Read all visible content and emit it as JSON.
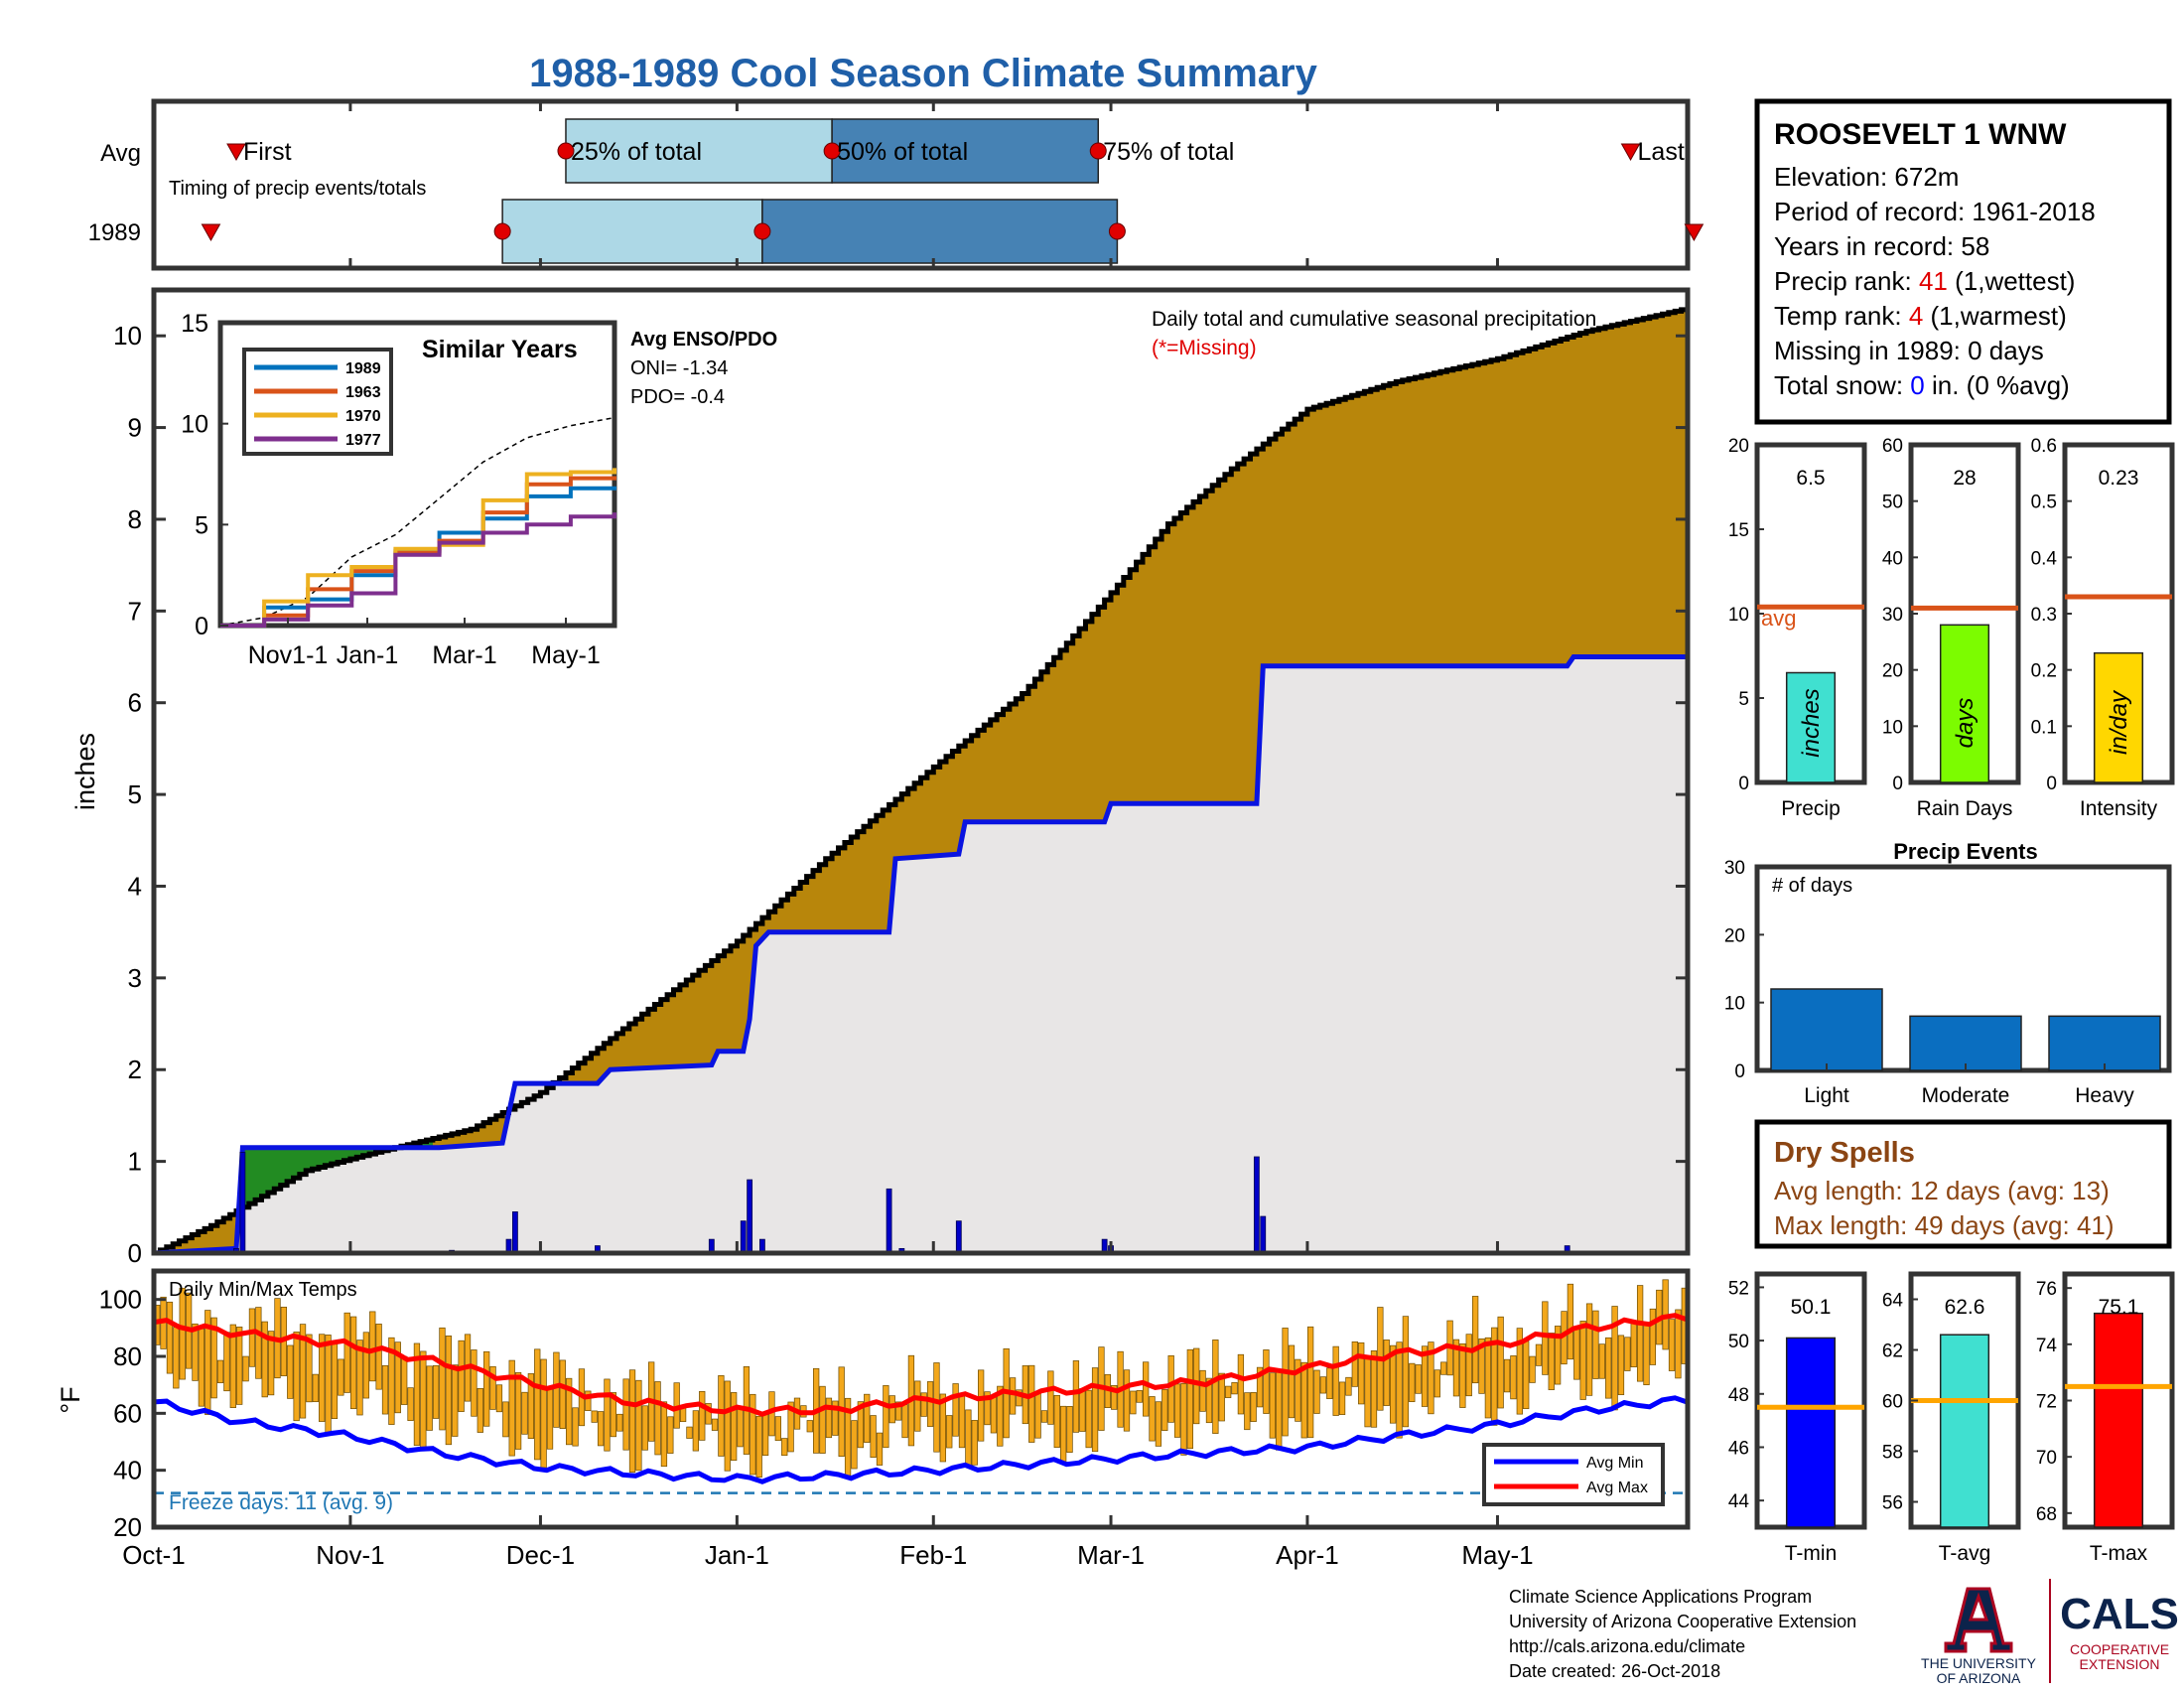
{
  "title": "1988-1989 Cool Season Climate Summary",
  "colors": {
    "title": "#1f5fa8",
    "frame": "#333333",
    "precip_fill": "#b8860b",
    "avg_fill": "#e8e6e6",
    "avg_line": "#0a14e0",
    "excess_fill": "#228b22",
    "timing_light": "#add8e6",
    "timing_dark": "#4682b4",
    "marker": "#e00000",
    "temp_bar": "#f2a71b",
    "avg_max_line": "#ff0000",
    "avg_min_line": "#0000ff",
    "freeze_line": "#1f77b4",
    "dry_spells": "#8b4513",
    "avg_ref_line": "#d95319",
    "event_bar": "#0a6ec0"
  },
  "timing": {
    "row_labels": [
      "Avg",
      "1989"
    ],
    "first_label": "First",
    "last_label": "Last",
    "q25_label": "25% of total",
    "q50_label": "50% of total",
    "q75_label": "75% of total",
    "caption": "Timing of precip events/totals",
    "avg": {
      "first": "1988-10-14",
      "q25": "1988-12-05",
      "q50": "1989-01-16",
      "q75": "1989-02-27",
      "last": "1989-05-22"
    },
    "y1989": {
      "first": "1988-10-10",
      "q25": "1988-11-25",
      "q50": "1989-01-05",
      "q75": "1989-03-02",
      "last": "1989-06-01"
    }
  },
  "info_box": {
    "station": "ROOSEVELT 1 WNW",
    "elevation": "Elevation: 672m",
    "period": "Period of record: 1961-2018",
    "years": "Years in record: 58",
    "precip_rank_prefix": "Precip rank: ",
    "precip_rank_value": "41",
    "precip_rank_suffix": " (1,wettest)",
    "temp_rank_prefix": "Temp rank: ",
    "temp_rank_value": "4",
    "temp_rank_suffix": " (1,warmest)",
    "missing": "Missing in 1989: 0 days",
    "snow_prefix": "Total snow: ",
    "snow_value": "0",
    "snow_suffix": " in. (0 %avg)"
  },
  "main_panel": {
    "ylabel": "inches",
    "caption": "Daily total and cumulative seasonal precipitation",
    "missing_note": "(*=Missing)",
    "enso_title": "Avg ENSO/PDO",
    "oni": "ONI= -1.34",
    "pdo": "PDO= -0.4",
    "yticks": [
      "0",
      "1",
      "2",
      "3",
      "4",
      "5",
      "6",
      "7",
      "8",
      "9",
      "10"
    ],
    "similar_years": {
      "title": "Similar Years",
      "legend": [
        "1989",
        "1963",
        "1970",
        "1977"
      ],
      "colors": [
        "#0072bd",
        "#d95319",
        "#edb120",
        "#7e2f8e"
      ],
      "yticks": [
        "0",
        "5",
        "10",
        "15"
      ],
      "xticks": [
        "Nov1-1",
        "Jan-1",
        "Mar-1",
        "May-1"
      ]
    }
  },
  "temp_panel": {
    "caption": "Daily Min/Max Temps",
    "ylabel": "°F",
    "yticks": [
      "20",
      "40",
      "60",
      "80",
      "100"
    ],
    "freeze_note": "Freeze days: 11 (avg. 9)",
    "legend_min": "Avg Min",
    "legend_max": "Avg Max"
  },
  "xaxis": {
    "ticks": [
      "Oct-1",
      "Nov-1",
      "Dec-1",
      "Jan-1",
      "Feb-1",
      "Mar-1",
      "Apr-1",
      "May-1"
    ]
  },
  "small_panels": [
    {
      "label": "Precip",
      "value_text": "6.5",
      "unit": "inches",
      "bar_color": "#40e0d0",
      "yticks": [
        "0",
        "5",
        "10",
        "15",
        "20"
      ],
      "avg_label": "avg"
    },
    {
      "label": "Rain Days",
      "value_text": "28",
      "unit": "days",
      "bar_color": "#7cfc00",
      "yticks": [
        "0",
        "10",
        "20",
        "30",
        "40",
        "50",
        "60"
      ]
    },
    {
      "label": "Intensity",
      "value_text": "0.23",
      "unit": "in/day",
      "bar_color": "#ffd700",
      "yticks": [
        "0",
        "0.1",
        "0.2",
        "0.3",
        "0.4",
        "0.5",
        "0.6"
      ]
    }
  ],
  "precip_events": {
    "title": "Precip Events",
    "caption": "# of days",
    "yticks": [
      "0",
      "10",
      "20",
      "30"
    ]
  },
  "dry_spells": {
    "title": "Dry Spells",
    "avg_length": "Avg length: 12 days (avg: 13)",
    "max_length": "Max length: 49 days (avg: 41)"
  },
  "temp_panels": [
    {
      "label": "T-min",
      "value_text": "50.1",
      "bar_color": "#0000ff",
      "yticks": [
        "44",
        "46",
        "48",
        "50",
        "52"
      ]
    },
    {
      "label": "T-avg",
      "value_text": "62.6",
      "bar_color": "#40e0d0",
      "yticks": [
        "56",
        "58",
        "60",
        "62",
        "64"
      ]
    },
    {
      "label": "T-max",
      "value_text": "75.1",
      "bar_color": "#ff0000",
      "yticks": [
        "68",
        "70",
        "72",
        "74",
        "76"
      ]
    }
  ],
  "footer": {
    "line1": "Climate Science Applications Program",
    "line2": "University of Arizona Cooperative Extension",
    "line3": "http://cals.arizona.edu/climate",
    "line4": " Date created: 26-Oct-2018",
    "ua_logo_text1": "THE UNIVERSITY",
    "ua_logo_text2": "OF ARIZONA",
    "cals_text": "CALS",
    "cals_sub1": "COOPERATIVE",
    "cals_sub2": "EXTENSION"
  },
  "chart_data": [
    {
      "type": "area",
      "title": "Daily total and cumulative seasonal precipitation",
      "ylabel": "inches",
      "ylim": [
        0,
        10.5
      ],
      "x_range": [
        "1988-10-01",
        "1989-05-31"
      ],
      "series": [
        {
          "name": "1989",
          "points": [
            [
              "1988-10-01",
              0
            ],
            [
              "1988-10-10",
              0.3
            ],
            [
              "1988-10-15",
              0.5
            ],
            [
              "1988-10-25",
              0.9
            ],
            [
              "1988-11-05",
              1.1
            ],
            [
              "1988-11-20",
              1.35
            ],
            [
              "1988-12-01",
              1.75
            ],
            [
              "1988-12-15",
              2.5
            ],
            [
              "1989-01-01",
              3.4
            ],
            [
              "1989-01-15",
              4.3
            ],
            [
              "1989-02-01",
              5.3
            ],
            [
              "1989-02-15",
              6.1
            ],
            [
              "1989-03-01",
              7.2
            ],
            [
              "1989-03-10",
              7.95
            ],
            [
              "1989-03-20",
              8.55
            ],
            [
              "1989-04-01",
              9.2
            ],
            [
              "1989-04-15",
              9.5
            ],
            [
              "1989-05-01",
              9.75
            ],
            [
              "1989-05-15",
              10.05
            ],
            [
              "1989-05-31",
              10.3
            ]
          ]
        },
        {
          "name": "Avg",
          "points": [
            [
              "1988-10-01",
              0
            ],
            [
              "1988-10-14",
              0.05
            ],
            [
              "1988-10-15",
              1.15
            ],
            [
              "1988-11-15",
              1.15
            ],
            [
              "1988-11-25",
              1.2
            ],
            [
              "1988-11-27",
              1.85
            ],
            [
              "1988-12-10",
              1.85
            ],
            [
              "1988-12-12",
              2.0
            ],
            [
              "1988-12-28",
              2.05
            ],
            [
              "1988-12-29",
              2.2
            ],
            [
              "1989-01-02",
              2.2
            ],
            [
              "1989-01-03",
              2.55
            ],
            [
              "1989-01-04",
              3.35
            ],
            [
              "1989-01-06",
              3.5
            ],
            [
              "1989-01-25",
              3.5
            ],
            [
              "1989-01-26",
              4.3
            ],
            [
              "1989-02-05",
              4.35
            ],
            [
              "1989-02-06",
              4.7
            ],
            [
              "1989-02-28",
              4.7
            ],
            [
              "1989-03-01",
              4.9
            ],
            [
              "1989-03-24",
              4.9
            ],
            [
              "1989-03-25",
              6.4
            ],
            [
              "1989-05-12",
              6.4
            ],
            [
              "1989-05-13",
              6.5
            ],
            [
              "1989-05-31",
              6.5
            ]
          ]
        },
        {
          "name": "daily",
          "points": [
            [
              "1988-10-14",
              0.05
            ],
            [
              "1988-10-15",
              1.1
            ],
            [
              "1988-11-17",
              0.03
            ],
            [
              "1988-11-27",
              0.45
            ],
            [
              "1988-11-26",
              0.15
            ],
            [
              "1988-12-10",
              0.08
            ],
            [
              "1988-12-28",
              0.15
            ],
            [
              "1989-01-02",
              0.35
            ],
            [
              "1989-01-03",
              0.8
            ],
            [
              "1989-01-05",
              0.15
            ],
            [
              "1989-01-25",
              0.7
            ],
            [
              "1989-01-27",
              0.05
            ],
            [
              "1989-02-05",
              0.35
            ],
            [
              "1989-02-28",
              0.15
            ],
            [
              "1989-03-01",
              0.08
            ],
            [
              "1989-03-24",
              1.05
            ],
            [
              "1989-03-25",
              0.4
            ],
            [
              "1989-05-12",
              0.08
            ]
          ]
        }
      ]
    },
    {
      "type": "line",
      "title": "Similar Years",
      "ylim": [
        0,
        15
      ],
      "series": [
        {
          "name": "1989",
          "values": [
            0,
            0.9,
            1.3,
            2.5,
            3.7,
            4.6,
            5.3,
            6.4,
            6.8,
            6.9
          ]
        },
        {
          "name": "1963",
          "values": [
            0,
            0.5,
            1.8,
            2.7,
            3.6,
            4.2,
            5.6,
            7.0,
            7.3,
            7.4
          ]
        },
        {
          "name": "1970",
          "values": [
            0,
            1.2,
            2.5,
            2.9,
            3.8,
            4.0,
            6.2,
            7.5,
            7.6,
            7.8
          ]
        },
        {
          "name": "1977",
          "values": [
            0,
            0.3,
            1.0,
            1.6,
            3.5,
            4.1,
            4.6,
            5.0,
            5.4,
            5.6
          ]
        }
      ]
    },
    {
      "type": "bar",
      "title": "Precip Events",
      "categories": [
        "Light",
        "Moderate",
        "Heavy"
      ],
      "values": [
        12,
        8,
        8
      ],
      "ylim": [
        0,
        30
      ]
    },
    {
      "type": "bar",
      "categories": [
        "Precip",
        "Rain Days",
        "Intensity"
      ],
      "values": [
        6.5,
        28,
        0.23
      ],
      "avg": [
        10.4,
        31,
        0.33
      ]
    },
    {
      "type": "bar",
      "categories": [
        "T-min",
        "T-avg",
        "T-max"
      ],
      "values": [
        50.1,
        62.6,
        75.1
      ],
      "avg": [
        47.5,
        60.0,
        72.5
      ]
    },
    {
      "type": "line",
      "title": "Daily Min/Max Temps",
      "ylim": [
        20,
        110
      ],
      "series": [
        {
          "name": "Avg Max",
          "points": [
            [
              "1988-10-01",
              92
            ],
            [
              "1988-10-15",
              88
            ],
            [
              "1988-11-01",
              84
            ],
            [
              "1988-11-15",
              78
            ],
            [
              "1988-12-01",
              70
            ],
            [
              "1988-12-15",
              64
            ],
            [
              "1989-01-01",
              61
            ],
            [
              "1989-01-15",
              61
            ],
            [
              "1989-02-01",
              65
            ],
            [
              "1989-02-15",
              67
            ],
            [
              "1989-03-01",
              69
            ],
            [
              "1989-03-15",
              71
            ],
            [
              "1989-04-01",
              76
            ],
            [
              "1989-04-15",
              81
            ],
            [
              "1989-05-01",
              84
            ],
            [
              "1989-05-15",
              90
            ],
            [
              "1989-05-31",
              94
            ]
          ]
        },
        {
          "name": "Avg Min",
          "points": [
            [
              "1988-10-01",
              64
            ],
            [
              "1988-10-15",
              57
            ],
            [
              "1988-11-01",
              52
            ],
            [
              "1988-11-15",
              46
            ],
            [
              "1988-12-01",
              41
            ],
            [
              "1988-12-15",
              39
            ],
            [
              "1989-01-01",
              37
            ],
            [
              "1989-01-15",
              38
            ],
            [
              "1989-02-01",
              40
            ],
            [
              "1989-02-15",
              42
            ],
            [
              "1989-03-01",
              44
            ],
            [
              "1989-03-15",
              46
            ],
            [
              "1989-04-01",
              48
            ],
            [
              "1989-04-15",
              52
            ],
            [
              "1989-05-01",
              56
            ],
            [
              "1989-05-15",
              61
            ],
            [
              "1989-05-31",
              65
            ]
          ]
        }
      ]
    }
  ]
}
